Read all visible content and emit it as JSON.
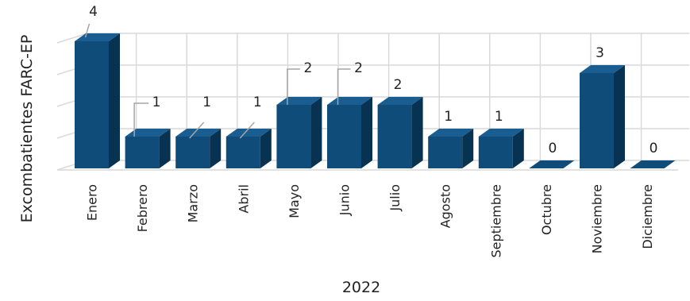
{
  "chart_data": {
    "type": "bar",
    "title": "",
    "xlabel": "2022",
    "ylabel": "Excombatientes FARC-EP",
    "categories": [
      "Enero",
      "Febrero",
      "Marzo",
      "Abril",
      "Mayo",
      "Junio",
      "Julio",
      "Agosto",
      "Septiembre",
      "Octubre",
      "Noviembre",
      "Diciembre"
    ],
    "values": [
      4,
      1,
      1,
      1,
      2,
      2,
      2,
      1,
      1,
      0,
      3,
      0
    ],
    "data_labels": [
      "4",
      "1",
      "1",
      "1",
      "2",
      "2",
      "2",
      "1",
      "1",
      "0",
      "3",
      "0"
    ],
    "ylim": [
      0,
      4
    ],
    "grid": true,
    "style": "3d-column",
    "colors": {
      "bar_front": "#0f4c7a",
      "bar_top": "#1a5e91",
      "bar_side": "#083252",
      "grid": "#d9d9d9"
    }
  }
}
